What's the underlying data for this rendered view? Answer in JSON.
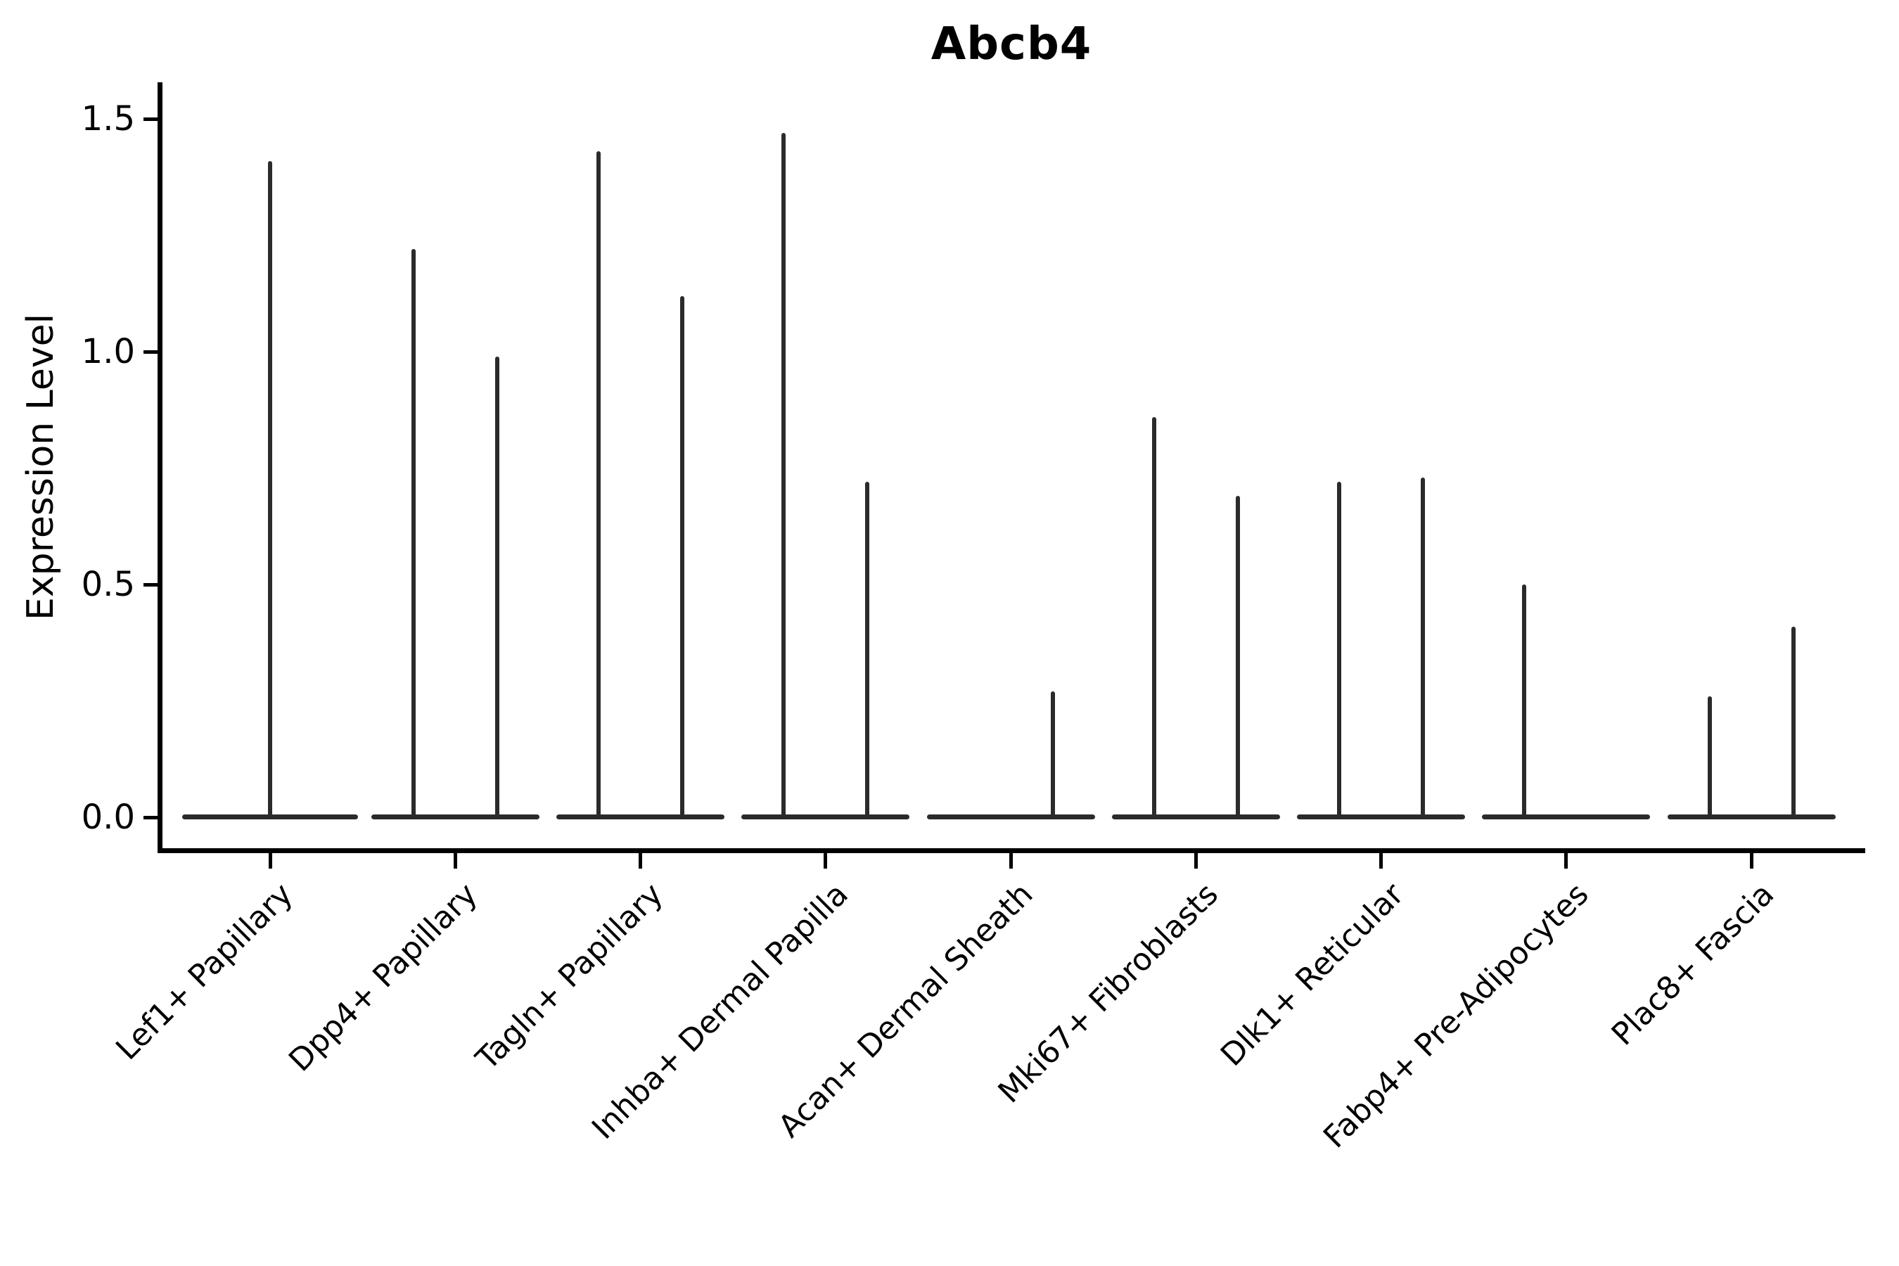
{
  "figure": {
    "background_color": "#ffffff",
    "axis_color": "#000000",
    "text_color": "#000000",
    "violin_color": "#2b2b2b"
  },
  "chart_data": {
    "type": "violin",
    "title": "Abcb4",
    "xlabel": "",
    "ylabel": "Expression Level",
    "y_ticks": [
      "0.0",
      "0.5",
      "1.0",
      "1.5"
    ],
    "ylim": [
      -0.07,
      1.58
    ],
    "grid": false,
    "legend": "none",
    "description": "Single-cell expression violin plot; each cell-type category shows flat zero-density violins with thin spikes reaching the maximum expression value.",
    "categories": [
      "Lef1+ Papillary",
      "Dpp4+ Papillary",
      "Tagln+ Papillary",
      "Inhba+ Dermal Papilla",
      "Acan+ Dermal Sheath",
      "Mki67+ Fibroblasts",
      "Dlk1+ Reticular",
      "Fabp4+ Pre-Adipocytes",
      "Plac8+ Fascia"
    ],
    "violins": [
      {
        "category": "Lef1+ Papillary",
        "spikes": [
          {
            "position": "center",
            "max_expression": 1.41
          }
        ]
      },
      {
        "category": "Dpp4+ Papillary",
        "spikes": [
          {
            "position": "left",
            "max_expression": 1.22
          },
          {
            "position": "right",
            "max_expression": 0.99
          }
        ]
      },
      {
        "category": "Tagln+ Papillary",
        "spikes": [
          {
            "position": "left",
            "max_expression": 1.43
          },
          {
            "position": "right",
            "max_expression": 1.12
          }
        ]
      },
      {
        "category": "Inhba+ Dermal Papilla",
        "spikes": [
          {
            "position": "left",
            "max_expression": 1.47
          },
          {
            "position": "right",
            "max_expression": 0.72
          }
        ]
      },
      {
        "category": "Acan+ Dermal Sheath",
        "spikes": [
          {
            "position": "left",
            "max_expression": 0
          },
          {
            "position": "right",
            "max_expression": 0.27
          }
        ]
      },
      {
        "category": "Mki67+ Fibroblasts",
        "spikes": [
          {
            "position": "left",
            "max_expression": 0.86
          },
          {
            "position": "right",
            "max_expression": 0.69
          }
        ]
      },
      {
        "category": "Dlk1+ Reticular",
        "spikes": [
          {
            "position": "left",
            "max_expression": 0.72
          },
          {
            "position": "right",
            "max_expression": 0.73
          }
        ]
      },
      {
        "category": "Fabp4+ Pre-Adipocytes",
        "spikes": [
          {
            "position": "left",
            "max_expression": 0.5
          },
          {
            "position": "right",
            "max_expression": 0
          }
        ]
      },
      {
        "category": "Plac8+ Fascia",
        "spikes": [
          {
            "position": "left",
            "max_expression": 0.26
          },
          {
            "position": "right",
            "max_expression": 0.41
          }
        ]
      }
    ]
  }
}
